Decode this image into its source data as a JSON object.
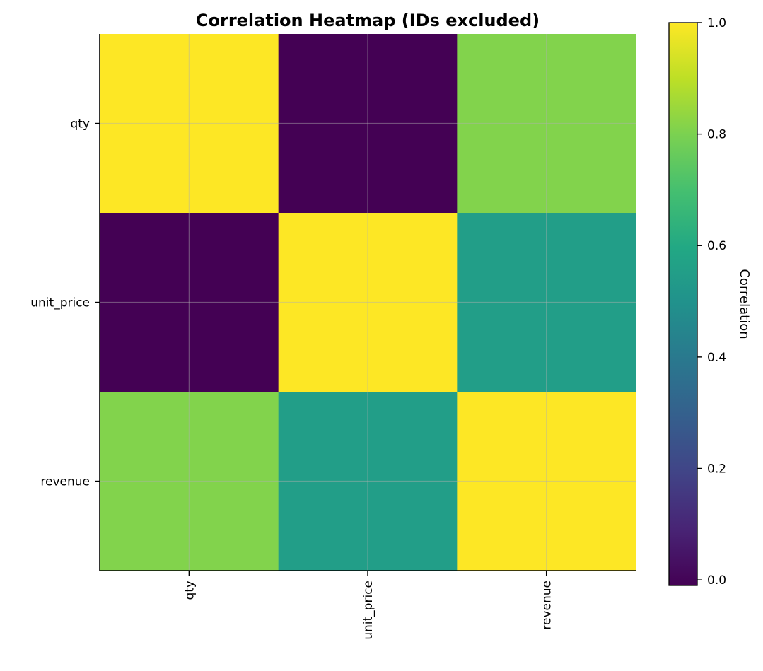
{
  "chart_data": {
    "type": "heatmap",
    "title": "Correlation Heatmap (IDs excluded)",
    "x_categories": [
      "qty",
      "unit_price",
      "revenue"
    ],
    "y_categories": [
      "qty",
      "unit_price",
      "revenue"
    ],
    "values": [
      [
        1.0,
        -0.01,
        0.81
      ],
      [
        -0.01,
        1.0,
        0.55
      ],
      [
        0.81,
        0.55,
        1.0
      ]
    ],
    "colormap": "viridis",
    "colorbar": {
      "label": "Correlation",
      "range": [
        -0.01,
        1.0
      ],
      "ticks": [
        0.0,
        0.2,
        0.4,
        0.6,
        0.8,
        1.0
      ],
      "tick_labels": [
        "0.0",
        "0.2",
        "0.4",
        "0.6",
        "0.8",
        "1.0"
      ]
    },
    "grid": true,
    "x_tick_rotation": "vertical"
  }
}
